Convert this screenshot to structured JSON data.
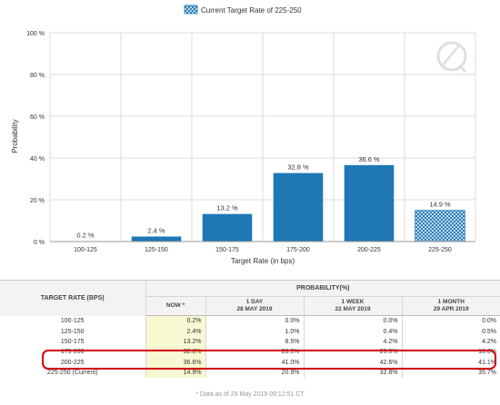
{
  "chart_data": {
    "type": "bar",
    "legend": {
      "label": "Current Target Rate of 225-250",
      "placement": "top-center"
    },
    "categories": [
      "100-125",
      "125-150",
      "150-175",
      "175-200",
      "200-225",
      "225-250"
    ],
    "values": [
      0.2,
      2.4,
      13.2,
      32.8,
      36.6,
      14.9
    ],
    "data_labels": [
      "0.2 %",
      "2.4 %",
      "13.2 %",
      "32.8 %",
      "36.6 %",
      "14.9 %"
    ],
    "highlighted_category": "225-250",
    "xlabel": "Target Rate (in bps)",
    "ylabel": "Probability",
    "ylim": [
      0,
      100
    ],
    "yticks": [
      0,
      20,
      40,
      60,
      80,
      100
    ],
    "ytick_labels": [
      "0 %",
      "20 %",
      "40 %",
      "60 %",
      "80 %",
      "100 %"
    ],
    "grid": true,
    "colors": {
      "bar": "#1f77b4",
      "hatch": "#1f77b4",
      "grid": "#dcdcdc"
    }
  },
  "table": {
    "target_header": "TARGET RATE (BPS)",
    "probability_header": "PROBABILITY(%)",
    "columns": [
      {
        "line1": "NOW *",
        "line2": ""
      },
      {
        "line1": "1 DAY",
        "line2": "28 MAY 2019"
      },
      {
        "line1": "1 WEEK",
        "line2": "22 MAY 2019"
      },
      {
        "line1": "1 MONTH",
        "line2": "29 APR 2019"
      }
    ],
    "rows": [
      {
        "rate": "100-125",
        "values": [
          "0.2%",
          "0.0%",
          "0.0%",
          "0.0%"
        ]
      },
      {
        "rate": "125-150",
        "values": [
          "2.4%",
          "1.0%",
          "0.4%",
          "0.5%"
        ]
      },
      {
        "rate": "150-175",
        "values": [
          "13.2%",
          "8.5%",
          "4.2%",
          "4.2%"
        ]
      },
      {
        "rate": "175-200",
        "values": [
          "32.8%",
          "28.5%",
          "20.0%",
          "18.6%"
        ]
      },
      {
        "rate": "200-225",
        "values": [
          "36.6%",
          "41.0%",
          "42.6%",
          "41.1%"
        ]
      },
      {
        "rate": "225-250 (Current)",
        "values": [
          "14.9%",
          "20.9%",
          "32.8%",
          "35.7%"
        ]
      }
    ],
    "footnote": "* Data as of 29 May 2019 09:12:51 CT",
    "highlight_color": "#d4000f"
  }
}
